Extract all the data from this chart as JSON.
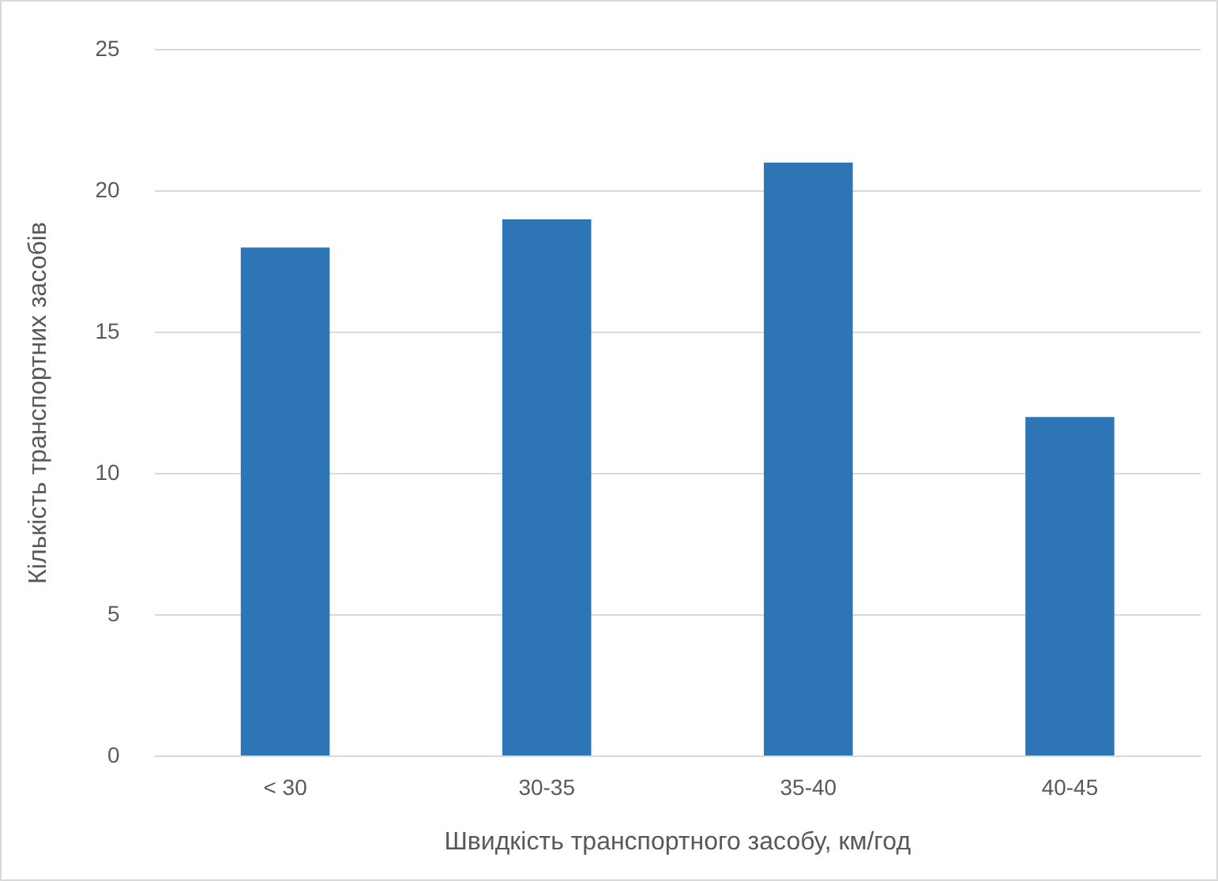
{
  "chart_data": {
    "type": "bar",
    "xlabel": "Швидкість транспортного засобу, км/год",
    "ylabel": "Кількість транспортних засобів",
    "categories": [
      "< 30",
      "30-35",
      "35-40",
      "40-45"
    ],
    "values": [
      18,
      19,
      21,
      12
    ],
    "color": "#2e75b6",
    "ylim": [
      0,
      25
    ],
    "yticks": [
      0,
      5,
      10,
      15,
      20,
      25
    ],
    "grid": "y"
  }
}
